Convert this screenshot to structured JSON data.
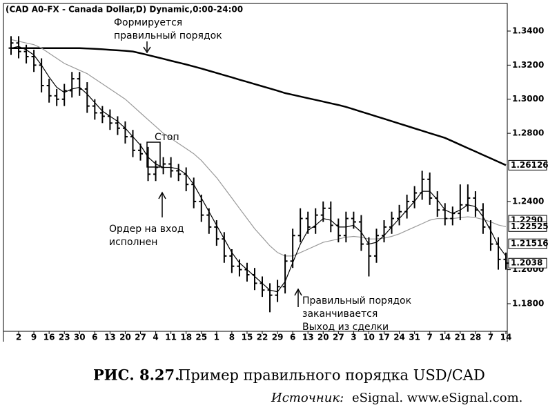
{
  "chart_data": {
    "type": "ohlc",
    "title": "(CAD A0-FX - Canada Dollar,D) Dynamic,0:00-24:00",
    "categories": [
      null,
      "2",
      null,
      "9",
      null,
      "16",
      null,
      "23",
      null,
      "30",
      null,
      "6",
      null,
      "13",
      null,
      "20",
      null,
      "27",
      null,
      "4",
      null,
      "11",
      null,
      "18",
      null,
      "25",
      null,
      "1",
      null,
      "8",
      null,
      "15",
      null,
      "22",
      null,
      "29",
      null,
      "6",
      null,
      "13",
      null,
      "20",
      null,
      "27",
      null,
      "3",
      null,
      "10",
      null,
      "17",
      null,
      "24",
      null,
      "31",
      null,
      "7",
      null,
      "14",
      null,
      "21",
      null,
      "28",
      null,
      "7",
      null,
      "14"
    ],
    "open": [
      1.33,
      1.333,
      1.328,
      1.325,
      1.32,
      1.308,
      1.302,
      1.3,
      1.305,
      1.312,
      1.306,
      1.296,
      1.292,
      1.29,
      1.286,
      1.283,
      1.278,
      1.27,
      1.268,
      1.256,
      1.26,
      1.262,
      1.258,
      1.256,
      1.25,
      1.24,
      1.232,
      1.225,
      1.218,
      1.208,
      1.202,
      1.2,
      1.197,
      1.192,
      1.188,
      1.185,
      1.19,
      1.205,
      1.22,
      1.23,
      1.225,
      1.232,
      1.236,
      1.226,
      1.22,
      1.23,
      1.228,
      1.215,
      1.208,
      1.22,
      1.225,
      1.23,
      1.234,
      1.24,
      1.245,
      1.253,
      1.242,
      1.235,
      1.23,
      1.233,
      1.238,
      1.242,
      1.235,
      1.225,
      1.215,
      1.206
    ],
    "high": [
      1.337,
      1.337,
      1.332,
      1.329,
      1.324,
      1.312,
      1.306,
      1.309,
      1.316,
      1.316,
      1.31,
      1.3,
      1.296,
      1.294,
      1.29,
      1.287,
      1.282,
      1.274,
      1.272,
      1.264,
      1.266,
      1.266,
      1.262,
      1.26,
      1.254,
      1.244,
      1.236,
      1.229,
      1.222,
      1.212,
      1.206,
      1.204,
      1.201,
      1.196,
      1.192,
      1.194,
      1.209,
      1.224,
      1.236,
      1.234,
      1.236,
      1.24,
      1.24,
      1.23,
      1.234,
      1.234,
      1.232,
      1.219,
      1.224,
      1.229,
      1.234,
      1.238,
      1.244,
      1.249,
      1.258,
      1.257,
      1.246,
      1.239,
      1.237,
      1.25,
      1.25,
      1.246,
      1.239,
      1.229,
      1.219,
      1.21
    ],
    "low": [
      1.326,
      1.324,
      1.321,
      1.316,
      1.304,
      1.298,
      1.296,
      1.296,
      1.301,
      1.302,
      1.292,
      1.288,
      1.286,
      1.282,
      1.279,
      1.274,
      1.266,
      1.264,
      1.252,
      1.252,
      1.256,
      1.254,
      1.252,
      1.246,
      1.236,
      1.228,
      1.221,
      1.214,
      1.204,
      1.198,
      1.196,
      1.193,
      1.188,
      1.184,
      1.175,
      1.181,
      1.186,
      1.201,
      1.216,
      1.221,
      1.221,
      1.228,
      1.222,
      1.216,
      1.216,
      1.224,
      1.211,
      1.196,
      1.204,
      1.216,
      1.221,
      1.226,
      1.23,
      1.236,
      1.241,
      1.238,
      1.231,
      1.226,
      1.226,
      1.229,
      1.234,
      1.231,
      1.221,
      1.211,
      1.2,
      1.2
    ],
    "close": [
      1.333,
      1.328,
      1.325,
      1.32,
      1.308,
      1.302,
      1.3,
      1.305,
      1.312,
      1.306,
      1.296,
      1.292,
      1.29,
      1.286,
      1.283,
      1.278,
      1.27,
      1.268,
      1.256,
      1.26,
      1.262,
      1.258,
      1.256,
      1.25,
      1.24,
      1.232,
      1.225,
      1.218,
      1.208,
      1.202,
      1.2,
      1.197,
      1.192,
      1.188,
      1.185,
      1.19,
      1.205,
      1.22,
      1.23,
      1.225,
      1.232,
      1.236,
      1.226,
      1.22,
      1.23,
      1.228,
      1.215,
      1.208,
      1.22,
      1.225,
      1.23,
      1.234,
      1.24,
      1.245,
      1.253,
      1.242,
      1.235,
      1.23,
      1.233,
      1.238,
      1.242,
      1.235,
      1.225,
      1.215,
      1.206,
      1.2038
    ],
    "color": "#000000",
    "series": [
      {
        "color": "#000000",
        "values": [
          1.33,
          1.33,
          1.33,
          1.33,
          1.33,
          1.33,
          1.33,
          1.33,
          1.33,
          1.33,
          1.3298,
          1.3296,
          1.3293,
          1.329,
          1.3287,
          1.3284,
          1.328,
          1.327,
          1.3259,
          1.3248,
          1.3237,
          1.3226,
          1.3215,
          1.3204,
          1.3192,
          1.318,
          1.3167,
          1.3154,
          1.3141,
          1.3128,
          1.3115,
          1.3102,
          1.3089,
          1.3076,
          1.3063,
          1.305,
          1.3036,
          1.3026,
          1.3016,
          1.3006,
          1.2996,
          1.2986,
          1.2976,
          1.2966,
          1.2955,
          1.2941,
          1.2927,
          1.2913,
          1.2899,
          1.2885,
          1.2871,
          1.2857,
          1.2843,
          1.2829,
          1.2815,
          1.2801,
          1.2787,
          1.2773,
          1.2753,
          1.2733,
          1.2713,
          1.2693,
          1.2673,
          1.2653,
          1.2633,
          1.2613
        ]
      },
      {
        "color": "#999999",
        "values": [
          1.335,
          1.334,
          1.333,
          1.332,
          1.33,
          1.327,
          1.324,
          1.321,
          1.319,
          1.317,
          1.315,
          1.312,
          1.309,
          1.306,
          1.303,
          1.3,
          1.296,
          1.292,
          1.288,
          1.284,
          1.28,
          1.277,
          1.274,
          1.271,
          1.268,
          1.264,
          1.259,
          1.254,
          1.248,
          1.242,
          1.236,
          1.23,
          1.224,
          1.219,
          1.214,
          1.21,
          1.208,
          1.208,
          1.21,
          1.212,
          1.214,
          1.216,
          1.217,
          1.218,
          1.219,
          1.2195,
          1.219,
          1.218,
          1.218,
          1.2185,
          1.2195,
          1.221,
          1.223,
          1.225,
          1.227,
          1.229,
          1.23,
          1.23,
          1.23,
          1.2305,
          1.231,
          1.2305,
          1.2295,
          1.228,
          1.2262,
          1.2252
        ]
      },
      {
        "color": "#000000",
        "values": [
          1.33,
          1.331,
          1.329,
          1.326,
          1.32,
          1.313,
          1.307,
          1.304,
          1.306,
          1.307,
          1.303,
          1.298,
          1.293,
          1.29,
          1.287,
          1.283,
          1.278,
          1.273,
          1.266,
          1.262,
          1.26,
          1.26,
          1.259,
          1.256,
          1.25,
          1.242,
          1.234,
          1.226,
          1.218,
          1.21,
          1.204,
          1.2,
          1.196,
          1.192,
          1.188,
          1.187,
          1.193,
          1.204,
          1.215,
          1.223,
          1.226,
          1.23,
          1.229,
          1.225,
          1.225,
          1.226,
          1.222,
          1.215,
          1.216,
          1.22,
          1.225,
          1.23,
          1.235,
          1.24,
          1.246,
          1.246,
          1.241,
          1.235,
          1.233,
          1.235,
          1.238,
          1.237,
          1.231,
          1.223,
          1.214,
          1.208
        ]
      }
    ],
    "ylim": [
      1.1638,
      1.3562
    ],
    "yticks": [
      {
        "value": 1.34,
        "label": "1.3400"
      },
      {
        "value": 1.32,
        "label": "1.3200"
      },
      {
        "value": 1.3,
        "label": "1.3000"
      },
      {
        "value": 1.28,
        "label": "1.2800"
      },
      {
        "value": 1.24,
        "label": "1.2400"
      },
      {
        "value": 1.2,
        "label": "1.2000"
      },
      {
        "value": 1.18,
        "label": "1.1800"
      }
    ],
    "price_labels": [
      1.26126,
      {
        "value": 1.229,
        "label": "1.2290"
      },
      1.22525,
      1.21516,
      1.2038
    ],
    "annotations": [
      {
        "lines": [
          "Формируется",
          "правильный порядок"
        ]
      },
      {
        "lines": [
          "Стоп"
        ]
      },
      {
        "lines": [
          "Ордер на вход",
          "исполнен"
        ]
      },
      {
        "lines": [
          "Правильный порядок",
          "заканчивается",
          "Выход из сделки"
        ]
      }
    ]
  },
  "caption": {
    "number": "РИС. 8.27.",
    "text": "Пример правильного порядка USD/CAD",
    "source_label": "Источник:",
    "source": "eSignal. www.eSignal.com."
  }
}
